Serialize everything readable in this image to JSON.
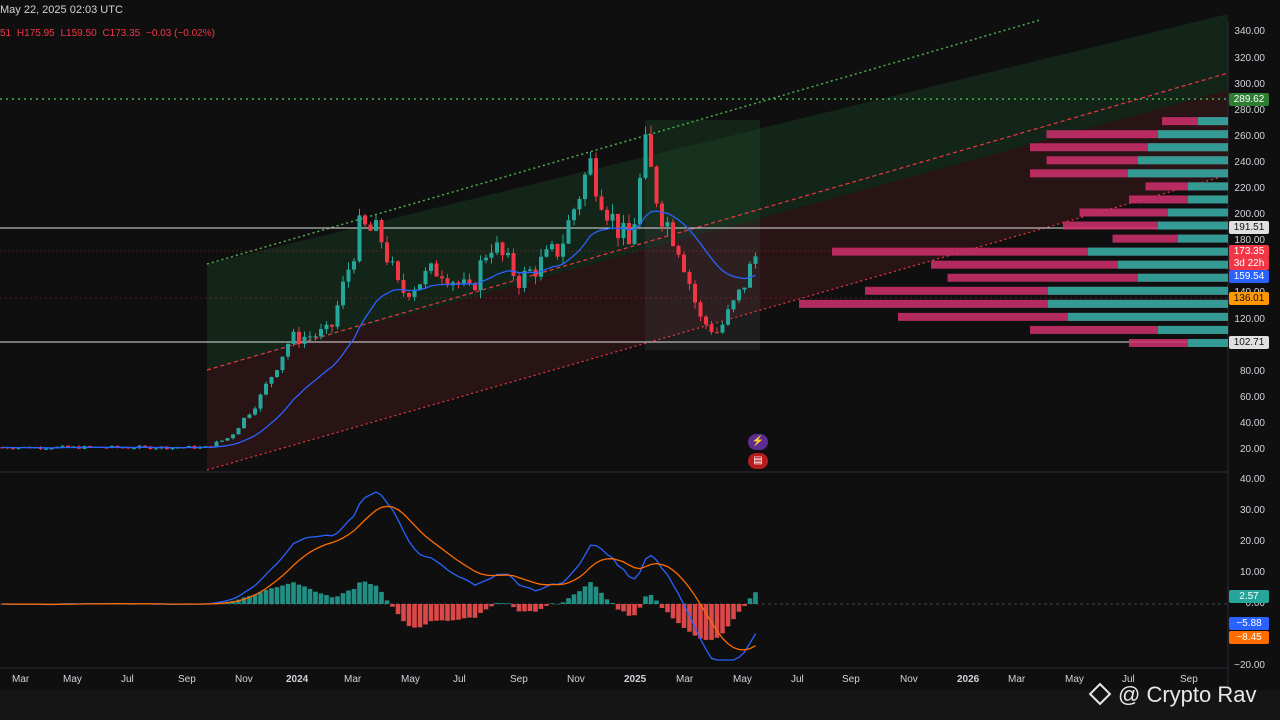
{
  "header": {
    "datetime": "May 22, 2025 02:03 UTC",
    "ohlc_prefix": "51",
    "high": "H175.95",
    "low": "L159.50",
    "close": "C173.35",
    "change": "−0.03 (−0.02%)"
  },
  "colors": {
    "background": "#0f0f0f",
    "up": "#26a69a",
    "down": "#f23645",
    "ema": "#2962ff",
    "channel_upper": "#4caf50",
    "channel_mid": "#f23645",
    "macd_signal": "#ff6d00",
    "volume_profile_buy": "#26a69a",
    "volume_profile_sell": "#d0306d"
  },
  "price_axis": {
    "ticks": [
      "340.00",
      "320.00",
      "300.00",
      "280.00",
      "260.00",
      "240.00",
      "220.00",
      "200.00",
      "180.00",
      "160.00",
      "140.00",
      "120.00",
      "100.00",
      "80.00",
      "60.00",
      "40.00",
      "20.00"
    ],
    "badges": {
      "target": "289.62",
      "resistance": "191.51",
      "last": "173.35",
      "countdown": "3d 22h",
      "ema": "159.54",
      "mid": "136.01",
      "support": "102.71"
    }
  },
  "macd_axis": {
    "ticks": [
      "40.00",
      "30.00",
      "20.00",
      "10.00",
      "0.00",
      "−20.00"
    ],
    "badges": {
      "hist": "2.57",
      "macd": "−5.88",
      "signal": "−8.45"
    }
  },
  "time_axis": [
    "Mar",
    "May",
    "Jul",
    "Sep",
    "Nov",
    "2024",
    "Mar",
    "May",
    "Jul",
    "Sep",
    "Nov",
    "2025",
    "Mar",
    "May",
    "Jul",
    "Sep",
    "Nov",
    "2026",
    "Mar",
    "May",
    "Jul",
    "Sep"
  ],
  "watermark": "@ Crypto Rav",
  "chart_data": [
    {
      "type": "candlestick",
      "title": "",
      "y_range": [
        10,
        345
      ],
      "overlays": [
        "ema",
        "rising channel",
        "volume profile"
      ],
      "horizontal_levels": [
        289.62,
        191.51,
        136.01,
        102.71
      ],
      "last_price": 173.35,
      "ema_last": 159.54
    },
    {
      "type": "macd",
      "y_range": [
        -22,
        40
      ],
      "histogram_last": 2.57,
      "macd_last": -5.88,
      "signal_last": -8.45
    }
  ]
}
